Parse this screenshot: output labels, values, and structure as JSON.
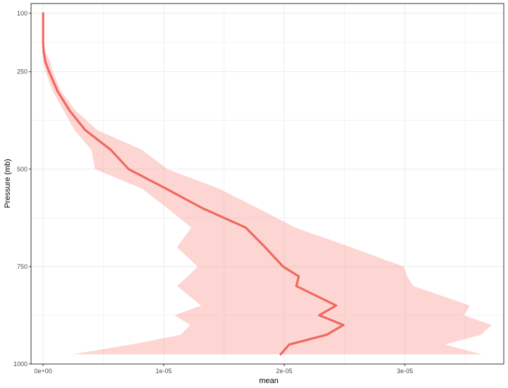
{
  "chart_data": {
    "type": "line",
    "title": "",
    "xlabel": "mean",
    "ylabel": "Pressure (mb)",
    "x_scale": "linear",
    "y_scale": "reversed",
    "xlim": [
      -1e-06,
      3.82e-05
    ],
    "ylim": [
      1000,
      75
    ],
    "grid": true,
    "legend": "none",
    "x_ticks": [
      {
        "value": 0,
        "label": "0e+00"
      },
      {
        "value": 1e-05,
        "label": "1e-05"
      },
      {
        "value": 2e-05,
        "label": "2e-05"
      },
      {
        "value": 3e-05,
        "label": "3e-05"
      }
    ],
    "y_ticks": [
      {
        "value": 100,
        "label": "100"
      },
      {
        "value": 250,
        "label": "250"
      },
      {
        "value": 500,
        "label": "500"
      },
      {
        "value": 750,
        "label": "750"
      },
      {
        "value": 1000,
        "label": "1000"
      }
    ],
    "colors": {
      "line": "#f0685f",
      "ribbon": "#f8766d",
      "grid": "#ebebeb",
      "panel_border": "#333333"
    },
    "series": [
      {
        "y": [
          100,
          125,
          175,
          200,
          225,
          250,
          300,
          350,
          400,
          450,
          500,
          550,
          600,
          650,
          700,
          750,
          775,
          800,
          850,
          875,
          900,
          925,
          950,
          975
        ],
        "mean": [
          0.0,
          0.0,
          0.0,
          5e-08,
          2e-07,
          5e-07,
          1.2e-06,
          2.2e-06,
          3.5e-06,
          5.6e-06,
          7.1e-06,
          1.02e-05,
          1.32e-05,
          1.68e-05,
          1.84e-05,
          1.99e-05,
          2.12e-05,
          2.1e-05,
          2.43e-05,
          2.29e-05,
          2.49e-05,
          2.35e-05,
          2.04e-05,
          1.97e-05
        ],
        "lower": [
          0.0,
          0.0,
          0.0,
          0.0,
          0.0,
          2e-07,
          8e-07,
          1.7e-06,
          2.6e-06,
          4e-06,
          4.3e-06,
          8.2e-06,
          1.03e-05,
          1.23e-05,
          1.11e-05,
          1.28e-05,
          1.2e-05,
          1.11e-05,
          1.31e-05,
          1.09e-05,
          1.22e-05,
          1.14e-05,
          7.3e-06,
          2.4e-06
        ],
        "upper": [
          0.0,
          0.0,
          0.0,
          2e-07,
          6e-07,
          8e-07,
          1.5e-06,
          2.7e-06,
          4.5e-06,
          8.2e-06,
          1.03e-05,
          1.46e-05,
          1.78e-05,
          2.09e-05,
          2.55e-05,
          2.99e-05,
          3.02e-05,
          3.07e-05,
          3.54e-05,
          3.49e-05,
          3.72e-05,
          3.63e-05,
          3.33e-05,
          3.64e-05
        ]
      }
    ]
  }
}
